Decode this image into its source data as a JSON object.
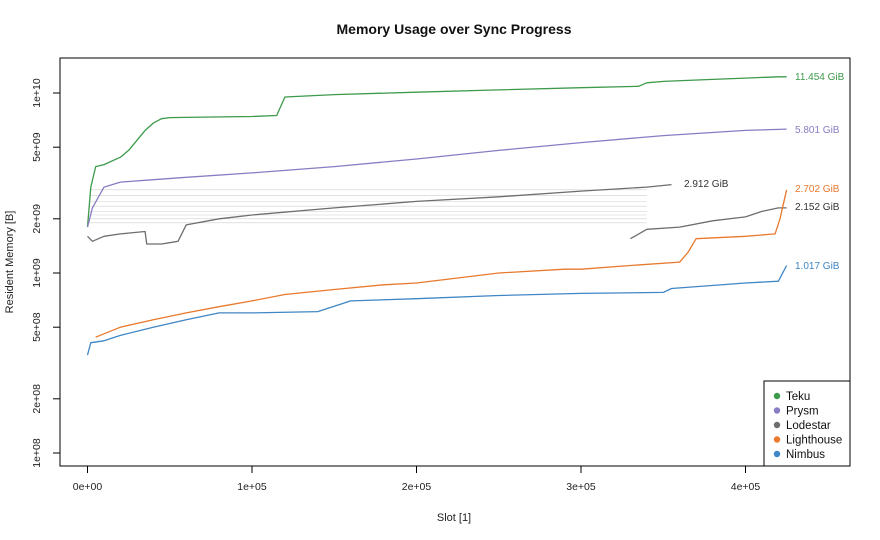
{
  "chart_data": {
    "type": "line",
    "title": "Memory Usage over Sync Progress",
    "xlabel": "Slot [1]",
    "ylabel": "Resident Memory [B]",
    "xlim": [
      0,
      430000
    ],
    "ylim": [
      90000000,
      18000000000
    ],
    "y_scale": "log",
    "grid": false,
    "legend_position": "bottom-right",
    "x_ticks": [
      {
        "value": 0,
        "label": "0e+00"
      },
      {
        "value": 100000,
        "label": "1e+05"
      },
      {
        "value": 200000,
        "label": "2e+05"
      },
      {
        "value": 300000,
        "label": "3e+05"
      },
      {
        "value": 400000,
        "label": "4e+05"
      }
    ],
    "y_ticks": [
      {
        "value": 100000000,
        "label": "1e+08"
      },
      {
        "value": 200000000,
        "label": "2e+08"
      },
      {
        "value": 500000000,
        "label": "5e+08"
      },
      {
        "value": 1000000000,
        "label": "1e+09"
      },
      {
        "value": 2000000000,
        "label": "2e+09"
      },
      {
        "value": 5000000000,
        "label": "5e+09"
      },
      {
        "value": 10000000000,
        "label": "1e+10"
      }
    ],
    "series": [
      {
        "name": "Teku",
        "color": "#3d9a4b",
        "end_label": "11.454 GiB",
        "x": [
          0,
          2000,
          5000,
          10000,
          20000,
          25000,
          35000,
          40000,
          45000,
          50000,
          70000,
          100000,
          115000,
          120000,
          150000,
          200000,
          250000,
          300000,
          335000,
          340000,
          350000,
          380000,
          400000,
          420000,
          425000
        ],
        "y": [
          1800000000,
          3000000000,
          3900000000,
          4000000000,
          4400000000,
          4800000000,
          6200000000,
          6800000000,
          7200000000,
          7300000000,
          7350000000,
          7400000000,
          7500000000,
          9500000000,
          9800000000,
          10100000000,
          10400000000,
          10700000000,
          10900000000,
          11400000000,
          11600000000,
          11900000000,
          12100000000,
          12300000000,
          12300000000
        ]
      },
      {
        "name": "Prysm",
        "color": "#8a7cc4",
        "end_label": "5.801 GiB",
        "x": [
          0,
          3000,
          10000,
          20000,
          40000,
          60000,
          100000,
          150000,
          200000,
          250000,
          300000,
          350000,
          400000,
          425000
        ],
        "y": [
          1800000000,
          2300000000,
          3000000000,
          3200000000,
          3300000000,
          3400000000,
          3600000000,
          3900000000,
          4300000000,
          4800000000,
          5300000000,
          5800000000,
          6200000000,
          6300000000
        ]
      },
      {
        "name": "Lodestar",
        "color": "#6e6e6e",
        "end_label_a": "2.912 GiB",
        "end_label_b": "2.152 GiB",
        "x": [
          0,
          3000,
          10000,
          20000,
          35000,
          36000,
          45000,
          55000,
          60000,
          80000,
          100000,
          150000,
          200000,
          250000,
          300000,
          340000,
          355000
        ],
        "y": [
          1600000000,
          1500000000,
          1600000000,
          1650000000,
          1700000000,
          1450000000,
          1450000000,
          1500000000,
          1850000000,
          2000000000,
          2100000000,
          2300000000,
          2500000000,
          2650000000,
          2850000000,
          3000000000,
          3100000000
        ],
        "x2": [
          330000,
          340000,
          360000,
          380000,
          400000,
          410000,
          420000,
          425000
        ],
        "y2": [
          1550000000,
          1750000000,
          1800000000,
          1950000000,
          2050000000,
          2200000000,
          2300000000,
          2300000000
        ]
      },
      {
        "name": "Lighthouse",
        "color": "#e8792d",
        "end_label": "2.702 GiB",
        "x": [
          5000,
          20000,
          40000,
          60000,
          80000,
          100000,
          120000,
          150000,
          180000,
          200000,
          250000,
          290000,
          300000,
          330000,
          360000,
          365000,
          370000,
          400000,
          418000,
          421000,
          425000
        ],
        "y": [
          440000000,
          500000000,
          550000000,
          600000000,
          650000000,
          700000000,
          760000000,
          810000000,
          860000000,
          880000000,
          1000000000,
          1050000000,
          1050000000,
          1100000000,
          1150000000,
          1300000000,
          1550000000,
          1600000000,
          1650000000,
          2000000000,
          2900000000
        ]
      },
      {
        "name": "Nimbus",
        "color": "#3f86c4",
        "end_label": "1.017 GiB",
        "x": [
          0,
          2000,
          10000,
          20000,
          40000,
          60000,
          80000,
          100000,
          140000,
          160000,
          200000,
          250000,
          300000,
          350000,
          355000,
          400000,
          420000,
          425000
        ],
        "y": [
          350000000,
          410000000,
          420000000,
          450000000,
          500000000,
          550000000,
          600000000,
          600000000,
          610000000,
          700000000,
          720000000,
          750000000,
          770000000,
          780000000,
          820000000,
          880000000,
          900000000,
          1100000000
        ]
      }
    ]
  }
}
